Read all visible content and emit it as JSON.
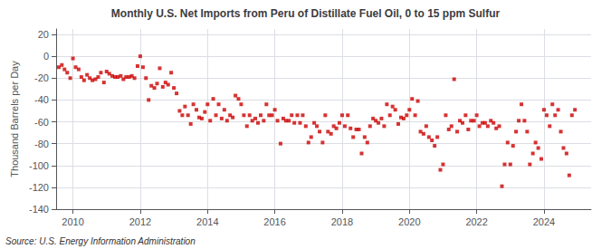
{
  "chart_data": {
    "type": "scatter",
    "title": "Monthly U.S. Net Imports from Peru of Distillate Fuel Oil, 0 to 15 ppm Sulfur",
    "ylabel": "Thousand Barrels per Day",
    "source": "Source: U.S. Energy Information Administration",
    "color": "#cc0000",
    "marker": "square",
    "grid": true,
    "xlim": [
      2009.5,
      2025.4
    ],
    "xticks": [
      2010,
      2012,
      2014,
      2016,
      2018,
      2020,
      2022,
      2024
    ],
    "ylim": [
      -140,
      25
    ],
    "yticks": [
      -140,
      -120,
      -100,
      -80,
      -60,
      -40,
      -20,
      0,
      20
    ],
    "x": [
      2009.58,
      2009.67,
      2009.75,
      2009.83,
      2009.92,
      2010.0,
      2010.08,
      2010.17,
      2010.25,
      2010.33,
      2010.42,
      2010.5,
      2010.58,
      2010.67,
      2010.75,
      2010.83,
      2010.92,
      2011.0,
      2011.08,
      2011.17,
      2011.25,
      2011.33,
      2011.42,
      2011.5,
      2011.58,
      2011.67,
      2011.75,
      2011.83,
      2011.92,
      2012.0,
      2012.08,
      2012.17,
      2012.25,
      2012.33,
      2012.42,
      2012.5,
      2012.58,
      2012.67,
      2012.75,
      2012.83,
      2012.92,
      2013.0,
      2013.08,
      2013.17,
      2013.25,
      2013.33,
      2013.42,
      2013.5,
      2013.58,
      2013.67,
      2013.75,
      2013.83,
      2013.92,
      2014.0,
      2014.08,
      2014.17,
      2014.25,
      2014.33,
      2014.42,
      2014.5,
      2014.58,
      2014.67,
      2014.75,
      2014.83,
      2014.92,
      2015.0,
      2015.08,
      2015.17,
      2015.25,
      2015.33,
      2015.42,
      2015.5,
      2015.58,
      2015.67,
      2015.75,
      2015.83,
      2015.92,
      2016.0,
      2016.08,
      2016.17,
      2016.25,
      2016.33,
      2016.42,
      2016.5,
      2016.58,
      2016.67,
      2016.75,
      2016.83,
      2016.92,
      2017.0,
      2017.08,
      2017.17,
      2017.25,
      2017.33,
      2017.42,
      2017.5,
      2017.58,
      2017.67,
      2017.75,
      2017.83,
      2017.92,
      2018.0,
      2018.08,
      2018.17,
      2018.25,
      2018.33,
      2018.42,
      2018.5,
      2018.58,
      2018.67,
      2018.75,
      2018.83,
      2018.92,
      2019.0,
      2019.08,
      2019.17,
      2019.25,
      2019.33,
      2019.42,
      2019.5,
      2019.58,
      2019.67,
      2019.75,
      2019.83,
      2019.92,
      2020.0,
      2020.08,
      2020.17,
      2020.25,
      2020.33,
      2020.42,
      2020.5,
      2020.58,
      2020.67,
      2020.75,
      2020.83,
      2020.92,
      2021.0,
      2021.08,
      2021.17,
      2021.25,
      2021.33,
      2021.42,
      2021.5,
      2021.58,
      2021.67,
      2021.75,
      2021.83,
      2021.92,
      2022.0,
      2022.08,
      2022.17,
      2022.25,
      2022.33,
      2022.42,
      2022.5,
      2022.58,
      2022.67,
      2022.75,
      2022.83,
      2022.92,
      2023.0,
      2023.08,
      2023.17,
      2023.25,
      2023.33,
      2023.42,
      2023.5,
      2023.58,
      2023.67,
      2023.75,
      2023.83,
      2023.92,
      2024.0,
      2024.08,
      2024.17,
      2024.25,
      2024.33,
      2024.42,
      2024.5,
      2024.58,
      2024.67,
      2024.75,
      2024.83,
      2024.92
    ],
    "values": [
      -10,
      -8,
      -12,
      -15,
      -20,
      -2,
      -10,
      -12,
      -19,
      -22,
      -17,
      -20,
      -22,
      -21,
      -19,
      -15,
      -24,
      -14,
      -16,
      -18,
      -19,
      -19,
      -18,
      -21,
      -19,
      -19,
      -18,
      -20,
      -9,
      0,
      -10,
      -20,
      -40,
      -27,
      -29,
      -25,
      -11,
      -28,
      -24,
      -26,
      -15,
      -29,
      -34,
      -50,
      -54,
      -46,
      -54,
      -62,
      -44,
      -49,
      -56,
      -57,
      -51,
      -44,
      -59,
      -39,
      -54,
      -44,
      -57,
      -49,
      -59,
      -54,
      -56,
      -36,
      -39,
      -44,
      -54,
      -64,
      -54,
      -59,
      -57,
      -61,
      -54,
      -59,
      -44,
      -54,
      -54,
      -49,
      -59,
      -80,
      -57,
      -59,
      -59,
      -54,
      -61,
      -54,
      -61,
      -54,
      -64,
      -79,
      -74,
      -61,
      -64,
      -69,
      -79,
      -54,
      -69,
      -71,
      -64,
      -66,
      -61,
      -54,
      -64,
      -54,
      -66,
      -74,
      -67,
      -67,
      -89,
      -74,
      -79,
      -64,
      -57,
      -59,
      -61,
      -57,
      -64,
      -44,
      -54,
      -46,
      -49,
      -62,
      -56,
      -57,
      -54,
      -49,
      -39,
      -54,
      -41,
      -69,
      -71,
      -64,
      -74,
      -77,
      -82,
      -74,
      -104,
      -99,
      -54,
      -67,
      -64,
      -21,
      -69,
      -59,
      -61,
      -54,
      -67,
      -59,
      -59,
      -54,
      -64,
      -61,
      -61,
      -64,
      -59,
      -61,
      -66,
      -64,
      -119,
      -99,
      -79,
      -99,
      -82,
      -69,
      -59,
      -44,
      -59,
      -69,
      -99,
      -89,
      -79,
      -84,
      -94,
      -49,
      -54,
      -64,
      -44,
      -54,
      -49,
      -69,
      -84,
      -89,
      -109,
      -54,
      -49
    ]
  }
}
